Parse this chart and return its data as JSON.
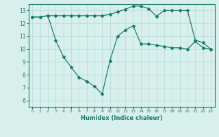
{
  "xlabel": "Humidex (Indice chaleur)",
  "line_color": "#1a7a6e",
  "bg_color": "#d8f0ec",
  "grid_color": "#b8ddd8",
  "xlim": [
    -0.5,
    23.5
  ],
  "ylim": [
    5.5,
    13.5
  ],
  "xticks": [
    0,
    1,
    2,
    3,
    4,
    5,
    6,
    7,
    8,
    9,
    10,
    11,
    12,
    13,
    14,
    15,
    16,
    17,
    18,
    19,
    20,
    21,
    22,
    23
  ],
  "yticks": [
    6,
    7,
    8,
    9,
    10,
    11,
    12,
    13
  ],
  "series1_x": [
    0,
    1,
    2,
    3,
    4,
    5,
    6,
    7,
    8,
    9,
    10,
    11,
    12,
    13,
    14,
    15,
    16,
    17,
    18,
    19,
    20,
    21,
    22,
    23
  ],
  "series1_y": [
    12.5,
    12.5,
    12.6,
    12.6,
    12.6,
    12.6,
    12.6,
    12.6,
    12.6,
    12.6,
    12.7,
    12.9,
    13.1,
    13.35,
    13.35,
    13.15,
    12.55,
    13.0,
    13.0,
    13.0,
    13.0,
    10.7,
    10.5,
    10.0
  ],
  "series2_x": [
    0,
    1,
    2,
    3,
    4,
    5,
    6,
    7,
    8,
    9,
    10,
    11,
    12,
    13,
    14,
    15,
    16,
    17,
    18,
    19,
    20,
    21,
    22,
    23
  ],
  "series2_y": [
    12.5,
    12.5,
    12.6,
    10.7,
    9.4,
    8.6,
    7.8,
    7.5,
    7.1,
    6.5,
    9.1,
    11.0,
    11.5,
    11.8,
    10.4,
    10.4,
    10.3,
    10.2,
    10.1,
    10.1,
    10.0,
    10.6,
    10.1,
    10.0
  ]
}
